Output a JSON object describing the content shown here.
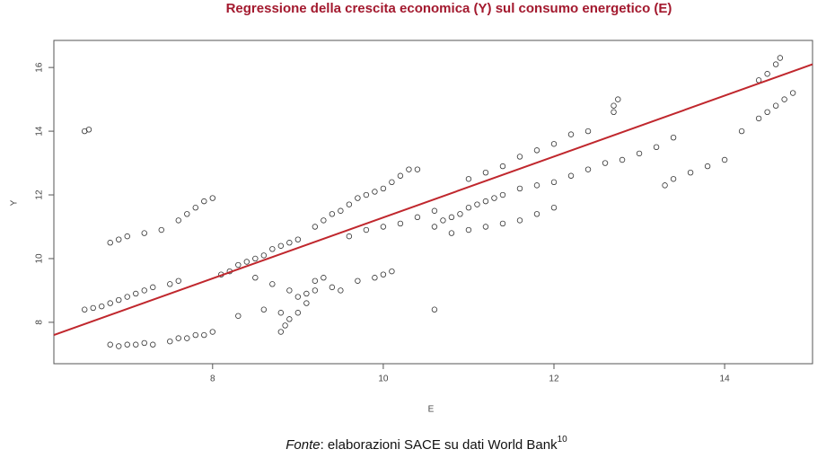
{
  "chart_data": {
    "type": "scatter",
    "title": "Regressione della crescita economica (Y) sul consumo energetico (E)",
    "xlabel": "E",
    "ylabel": "Y",
    "xlim": [
      6.14,
      15.03
    ],
    "ylim": [
      6.7,
      16.85
    ],
    "xticks": [
      8,
      10,
      12,
      14
    ],
    "yticks": [
      8,
      10,
      12,
      14,
      16
    ],
    "series": [
      {
        "color": "#333333",
        "x": [
          6.5,
          6.55,
          6.8,
          6.9,
          7.0,
          7.1,
          7.2,
          7.3,
          7.5,
          7.6,
          7.7,
          7.8,
          7.9,
          8.0,
          6.5,
          6.6,
          6.7,
          6.8,
          6.9,
          7.0,
          7.1,
          7.2,
          7.3,
          7.5,
          7.6,
          6.8,
          6.9,
          7.0,
          7.2,
          7.4,
          7.6,
          7.7,
          7.8,
          7.9,
          8.0,
          8.1,
          8.2,
          8.3,
          8.4,
          8.5,
          8.6,
          8.7,
          8.8,
          8.9,
          9.0,
          8.5,
          8.7,
          8.9,
          9.0,
          9.1,
          8.3,
          8.6,
          8.8,
          8.8,
          8.85,
          8.9,
          9.0,
          9.1,
          9.2,
          9.3,
          9.2,
          9.4,
          9.5,
          9.7,
          9.9,
          10.0,
          10.1,
          9.2,
          9.3,
          9.4,
          9.5,
          9.6,
          9.7,
          9.8,
          9.9,
          10.0,
          10.1,
          10.2,
          10.3,
          10.4,
          9.6,
          9.8,
          10.0,
          10.2,
          10.4,
          10.6,
          10.6,
          10.7,
          10.8,
          10.9,
          11.0,
          11.1,
          11.2,
          11.3,
          11.4,
          10.8,
          11.0,
          11.2,
          11.4,
          11.6,
          11.8,
          11.0,
          11.2,
          11.4,
          11.6,
          11.8,
          12.0,
          12.2,
          12.4,
          11.6,
          11.8,
          12.0,
          12.2,
          12.4,
          12.6,
          12.8,
          13.0,
          13.2,
          13.4,
          12.7,
          12.75,
          12.7,
          10.6,
          12.0,
          13.3,
          13.4,
          13.6,
          13.8,
          14.0,
          14.2,
          14.4,
          14.5,
          14.6,
          14.7,
          14.8,
          14.4,
          14.5,
          14.6,
          14.65
        ],
        "values": [
          14.0,
          14.05,
          7.3,
          7.25,
          7.3,
          7.3,
          7.35,
          7.3,
          7.4,
          7.5,
          7.5,
          7.6,
          7.6,
          7.7,
          8.4,
          8.45,
          8.5,
          8.6,
          8.7,
          8.8,
          8.9,
          9.0,
          9.1,
          9.2,
          9.3,
          10.5,
          10.6,
          10.7,
          10.8,
          10.9,
          11.2,
          11.4,
          11.6,
          11.8,
          11.9,
          9.5,
          9.6,
          9.8,
          9.9,
          10.0,
          10.1,
          10.3,
          10.4,
          10.5,
          10.6,
          9.4,
          9.2,
          9.0,
          8.8,
          8.9,
          8.2,
          8.4,
          8.3,
          7.7,
          7.9,
          8.1,
          8.3,
          8.6,
          9.0,
          9.4,
          9.3,
          9.1,
          9.0,
          9.3,
          9.4,
          9.5,
          9.6,
          11.0,
          11.2,
          11.4,
          11.5,
          11.7,
          11.9,
          12.0,
          12.1,
          12.2,
          12.4,
          12.6,
          12.8,
          12.8,
          10.7,
          10.9,
          11.0,
          11.1,
          11.3,
          11.5,
          11.0,
          11.2,
          11.3,
          11.4,
          11.6,
          11.7,
          11.8,
          11.9,
          12.0,
          10.8,
          10.9,
          11.0,
          11.1,
          11.2,
          11.4,
          12.5,
          12.7,
          12.9,
          13.2,
          13.4,
          13.6,
          13.9,
          14.0,
          12.2,
          12.3,
          12.4,
          12.6,
          12.8,
          13.0,
          13.1,
          13.3,
          13.5,
          13.8,
          14.8,
          15.0,
          14.6,
          8.4,
          11.6,
          12.3,
          12.5,
          12.7,
          12.9,
          13.1,
          14.0,
          14.4,
          14.6,
          14.8,
          15.0,
          15.2,
          15.6,
          15.8,
          16.1,
          16.3
        ]
      }
    ],
    "fit": {
      "type": "line",
      "color": "#c0272d",
      "x": [
        6.14,
        15.03
      ],
      "values": [
        7.6,
        16.1
      ]
    },
    "source": {
      "italic": "Fonte",
      "text": ": elaborazioni SACE su dati World Bank",
      "note": "10"
    }
  }
}
